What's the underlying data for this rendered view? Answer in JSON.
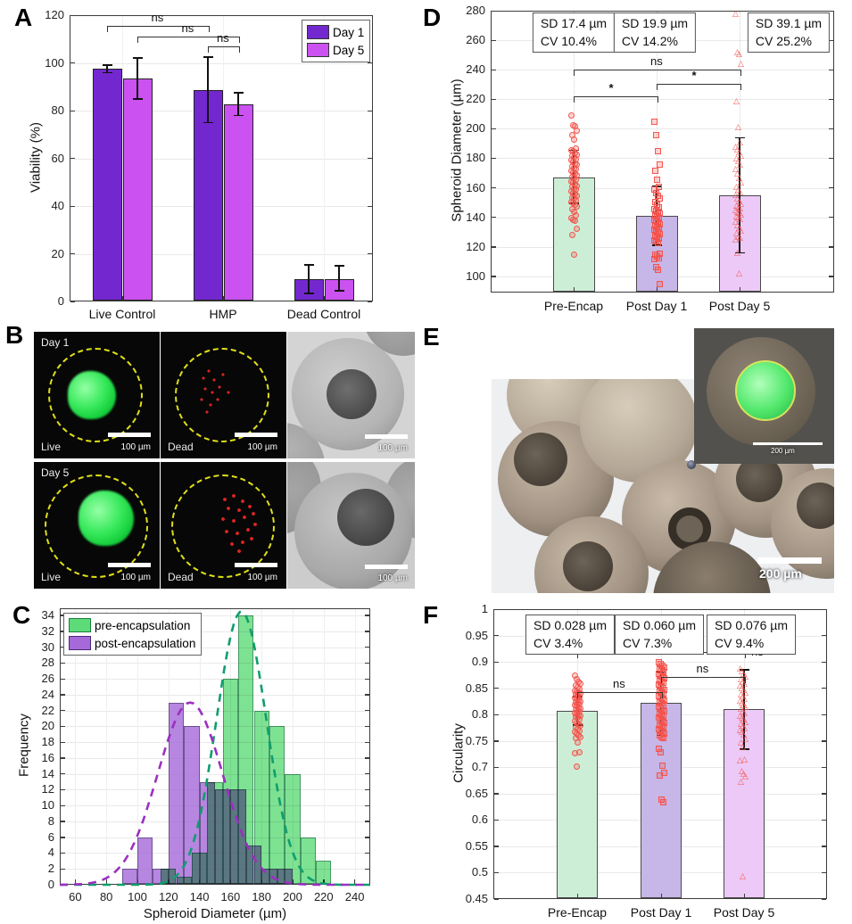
{
  "figure": {
    "panel_labels": {
      "a": "A",
      "b": "B",
      "c": "C",
      "d": "D",
      "e": "E",
      "f": "F"
    }
  },
  "colors": {
    "day1": "#7328cf",
    "day5": "#cb52f0",
    "hist_pre": "#5ddb78",
    "hist_post": "#a669d9",
    "fit_pre": "#0f9e6e",
    "fit_post": "#9a30c0",
    "bar_mint": "#cdeed6",
    "bar_lavender": "#c7b6e8",
    "bar_lilac": "#ecc9f7",
    "scatter_red": "#e8433c",
    "error_black": "#111111"
  },
  "chart_data": [
    {
      "id": "A",
      "type": "bar",
      "ylabel": "Viability (%)",
      "ylim": [
        0,
        120
      ],
      "yticks": [
        0,
        20,
        40,
        60,
        80,
        100,
        120
      ],
      "categories": [
        "Live Control",
        "HMP",
        "Dead Control"
      ],
      "series": [
        {
          "name": "Day 1",
          "color": "#7328cf",
          "values": [
            97.5,
            88.5,
            9.5
          ],
          "err_low": [
            96,
            75,
            3.5
          ],
          "err_high": [
            99,
            102.5,
            15.5
          ]
        },
        {
          "name": "Day 5",
          "color": "#cb52f0",
          "values": [
            93.5,
            82.5,
            9.5
          ],
          "err_low": [
            85,
            78,
            4.5
          ],
          "err_high": [
            102,
            87.5,
            15
          ]
        }
      ],
      "legend": {
        "position": "top-right",
        "entries": [
          "Day 1",
          "Day 5"
        ]
      },
      "brackets": [
        {
          "from": [
            0,
            0
          ],
          "to": [
            1,
            0
          ],
          "y": 115.5,
          "label": "ns"
        },
        {
          "from": [
            0,
            1
          ],
          "to": [
            1,
            1
          ],
          "y": 111,
          "label": "ns"
        },
        {
          "from": [
            1,
            0
          ],
          "to": [
            1,
            1
          ],
          "y": 107,
          "label": "ns"
        }
      ],
      "grid": true
    },
    {
      "id": "C",
      "type": "histogram",
      "xlabel": "Spheroid Diameter (µm)",
      "ylabel": "Frequency",
      "xlim": [
        50,
        250
      ],
      "xticks": [
        60,
        80,
        100,
        120,
        140,
        160,
        180,
        200,
        220,
        240
      ],
      "ylim": [
        0,
        34.9
      ],
      "ytick_step": 2,
      "ytick_max": 34,
      "legend": {
        "position": "top-left",
        "entries": [
          "pre-encapsulation",
          "post-encapsulation"
        ]
      },
      "series": [
        {
          "name": "post-encapsulation",
          "color": "#a669d9",
          "edge": "#4a2a78",
          "bin_start": 90,
          "bin_width": 10,
          "counts": [
            2,
            6,
            2,
            23,
            20,
            13,
            12,
            12,
            5,
            2,
            2
          ]
        },
        {
          "name": "pre-encapsulation",
          "color": "#5ddb78",
          "edge": "#17803d",
          "bin_start": 115,
          "bin_width": 10,
          "counts": [
            2,
            1,
            4,
            13,
            26,
            34,
            22,
            20,
            14,
            6,
            3
          ]
        }
      ],
      "fits": [
        {
          "series": "pre-encapsulation",
          "mean": 167,
          "sd": 16,
          "amp": 34.5,
          "color": "#0f9e6e"
        },
        {
          "series": "post-encapsulation",
          "mean": 134,
          "sd": 21,
          "amp": 23,
          "color": "#9a30c0"
        }
      ],
      "grid": true
    },
    {
      "id": "D",
      "type": "bar_scatter",
      "ylabel": "Spheroid Diameter (µm)",
      "ylim": [
        89,
        280
      ],
      "yticks": [
        100,
        120,
        140,
        160,
        180,
        200,
        220,
        240,
        260,
        280
      ],
      "categories": [
        "Pre-Encap",
        "Post Day 1",
        "Post Day 5"
      ],
      "bars": {
        "values": [
          167,
          141,
          155
        ],
        "colors": [
          "#cdeed6",
          "#c7b6e8",
          "#ecc9f7"
        ]
      },
      "errors": [
        [
          149.5,
          185.5
        ],
        [
          121,
          161
        ],
        [
          116,
          194
        ]
      ],
      "stat_boxes": [
        {
          "line1": "SD 17.4 µm",
          "line2": "CV 10.4%"
        },
        {
          "line1": "SD 19.9 µm",
          "line2": "CV 14.2%"
        },
        {
          "line1": "SD 39.1 µm",
          "line2": "CV 25.2%"
        }
      ],
      "brackets": [
        {
          "x1": 0,
          "x2": 1,
          "y": 222,
          "label": "*"
        },
        {
          "x1": 1,
          "x2": 2,
          "y": 230.5,
          "label": "*"
        },
        {
          "x1": 0,
          "x2": 2,
          "y": 240,
          "label": "ns"
        }
      ],
      "scatter": [
        {
          "marker": "circle",
          "values": [
            209.5,
            203,
            202,
            199,
            196,
            193,
            187,
            186,
            185,
            184,
            183,
            182,
            181,
            180,
            179,
            178,
            177,
            176,
            175,
            174,
            173,
            172,
            171,
            170,
            169,
            168,
            167,
            166,
            165,
            164,
            163,
            162,
            161,
            160,
            159,
            158,
            157,
            156,
            155,
            154,
            153,
            152,
            151,
            150,
            149,
            148,
            146,
            144,
            142,
            140,
            139,
            138,
            133,
            128.5,
            115
          ]
        },
        {
          "marker": "square",
          "values": [
            205,
            196,
            185,
            176,
            172,
            166,
            161,
            159,
            157,
            155,
            153,
            151,
            149,
            147,
            146,
            145,
            144,
            143,
            142,
            141,
            140,
            139,
            138,
            137,
            136,
            135,
            134,
            133,
            132,
            131,
            130,
            129,
            128,
            127,
            126,
            125,
            124,
            123,
            116,
            115,
            114,
            113,
            112,
            107,
            105,
            95.5
          ]
        },
        {
          "marker": "triangle",
          "values": [
            277,
            251,
            250,
            243,
            218,
            200,
            190,
            187,
            185,
            183,
            181,
            179,
            177,
            175,
            172,
            169,
            166,
            163,
            160,
            158,
            156,
            154,
            152,
            150,
            148,
            147,
            146,
            145,
            144,
            143,
            142,
            141,
            140,
            139,
            138,
            136,
            134,
            132,
            130,
            128,
            126,
            125,
            124,
            115,
            101
          ]
        }
      ],
      "grid": true
    },
    {
      "id": "F",
      "type": "bar_scatter",
      "ylabel": "Circularity",
      "ylim": [
        0.45,
        1.0
      ],
      "yticks": [
        0.45,
        0.5,
        0.55,
        0.6,
        0.65,
        0.7,
        0.75,
        0.8,
        0.85,
        0.9,
        0.95,
        1
      ],
      "categories": [
        "Pre-Encap",
        "Post Day 1",
        "Post Day 5"
      ],
      "bars": {
        "values": [
          0.807,
          0.822,
          0.81
        ],
        "colors": [
          "#cdeed6",
          "#c7b6e8",
          "#ecc9f7"
        ]
      },
      "errors": [
        [
          0.78,
          0.834
        ],
        [
          0.761,
          0.881
        ],
        [
          0.735,
          0.885
        ]
      ],
      "stat_boxes": [
        {
          "line1": "SD 0.028 µm",
          "line2": "CV 3.4%"
        },
        {
          "line1": "SD 0.060 µm",
          "line2": "CV 7.3%"
        },
        {
          "line1": "SD 0.076 µm",
          "line2": "CV 9.4%"
        }
      ],
      "brackets": [
        {
          "x1": 0,
          "x2": 1,
          "y": 0.843,
          "label": "ns"
        },
        {
          "x1": 1,
          "x2": 2,
          "y": 0.872,
          "label": "ns"
        },
        {
          "x1": 0,
          "x2": 2,
          "y": 0.918,
          "label": "ns",
          "label_pos": "right"
        }
      ],
      "scatter": [
        {
          "marker": "circle",
          "values": [
            0.875,
            0.869,
            0.864,
            0.86,
            0.856,
            0.853,
            0.85,
            0.847,
            0.845,
            0.843,
            0.841,
            0.839,
            0.837,
            0.835,
            0.833,
            0.831,
            0.829,
            0.827,
            0.825,
            0.823,
            0.821,
            0.819,
            0.817,
            0.815,
            0.813,
            0.811,
            0.809,
            0.807,
            0.805,
            0.803,
            0.801,
            0.799,
            0.797,
            0.795,
            0.792,
            0.789,
            0.786,
            0.783,
            0.78,
            0.777,
            0.774,
            0.771,
            0.768,
            0.765,
            0.762,
            0.759,
            0.756,
            0.748,
            0.73,
            0.728,
            0.703
          ]
        },
        {
          "marker": "square",
          "values": [
            0.9,
            0.897,
            0.894,
            0.891,
            0.888,
            0.885,
            0.882,
            0.879,
            0.876,
            0.873,
            0.87,
            0.867,
            0.864,
            0.861,
            0.858,
            0.855,
            0.852,
            0.849,
            0.846,
            0.843,
            0.84,
            0.837,
            0.834,
            0.831,
            0.828,
            0.825,
            0.822,
            0.819,
            0.816,
            0.813,
            0.81,
            0.807,
            0.804,
            0.801,
            0.798,
            0.795,
            0.792,
            0.789,
            0.786,
            0.783,
            0.78,
            0.777,
            0.774,
            0.771,
            0.768,
            0.765,
            0.762,
            0.759,
            0.756,
            0.737,
            0.73,
            0.705,
            0.69,
            0.685,
            0.64,
            0.635
          ]
        },
        {
          "marker": "triangle",
          "values": [
            0.885,
            0.88,
            0.875,
            0.87,
            0.865,
            0.86,
            0.856,
            0.852,
            0.848,
            0.844,
            0.84,
            0.836,
            0.832,
            0.828,
            0.824,
            0.82,
            0.816,
            0.812,
            0.808,
            0.804,
            0.8,
            0.796,
            0.792,
            0.788,
            0.784,
            0.78,
            0.776,
            0.772,
            0.768,
            0.764,
            0.76,
            0.752,
            0.744,
            0.736,
            0.712,
            0.71,
            0.69,
            0.685,
            0.68,
            0.67,
            0.49
          ]
        }
      ],
      "grid": true
    }
  ],
  "panel_b": {
    "scale_label": "100 µm",
    "rows": [
      {
        "day": "Day 1",
        "live_label": "Live",
        "dead_label": "Dead"
      },
      {
        "day": "Day 5",
        "live_label": "Live",
        "dead_label": "Dead"
      }
    ]
  },
  "panel_e": {
    "scale_main": "200 µm",
    "scale_inset": "200 µm"
  }
}
